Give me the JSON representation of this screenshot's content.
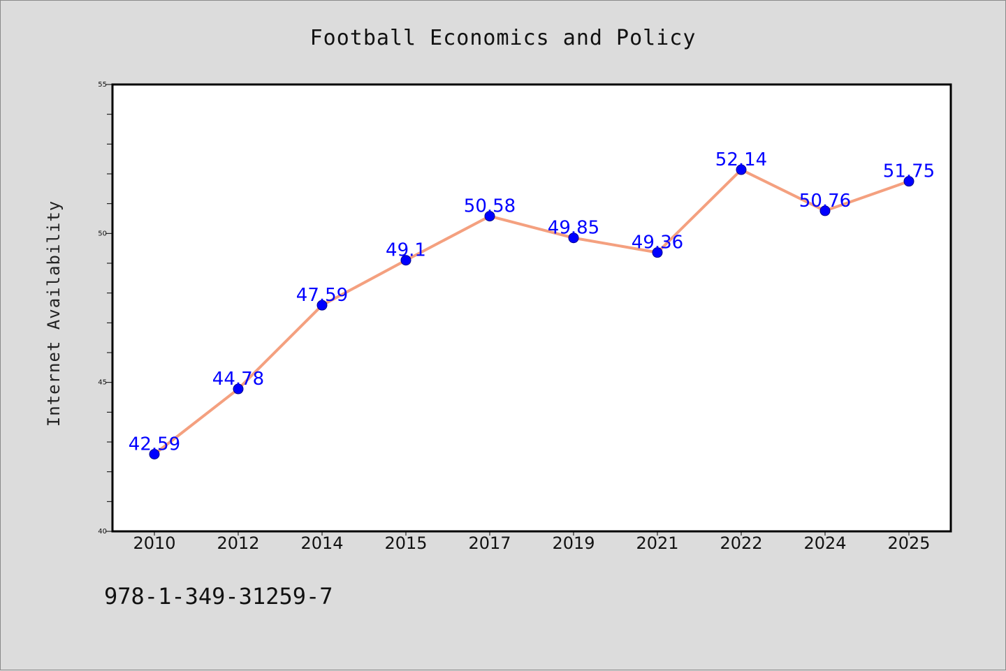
{
  "chart_data": {
    "type": "line",
    "title": "Football Economics and Policy",
    "xlabel": "",
    "ylabel": "Internet Availability",
    "categories": [
      "2010",
      "2012",
      "2014",
      "2015",
      "2017",
      "2019",
      "2021",
      "2022",
      "2024",
      "2025"
    ],
    "series": [
      {
        "values": [
          42.59,
          44.78,
          47.59,
          49.1,
          50.58,
          49.85,
          49.36,
          52.14,
          50.76,
          51.75
        ],
        "data_labels": [
          "42.59",
          "44.78",
          "47.59",
          "49.1",
          "50.58",
          "49.85",
          "49.36",
          "52.14",
          "50.76",
          "51.75"
        ]
      }
    ],
    "ylim": [
      40,
      55
    ],
    "yticks": [
      40,
      45,
      50,
      55
    ],
    "ytick_labels": [
      "40",
      "45",
      "50",
      "55"
    ],
    "grid": false,
    "colors": {
      "line": "#f4a07f",
      "marker": "#0000ff",
      "marker_edge": "#00008b",
      "data_label": "#0000ff",
      "plot_background": "#ffffff",
      "figure_background": "#dcdcdc"
    }
  },
  "footer": {
    "isbn": "978-1-349-31259-7"
  }
}
